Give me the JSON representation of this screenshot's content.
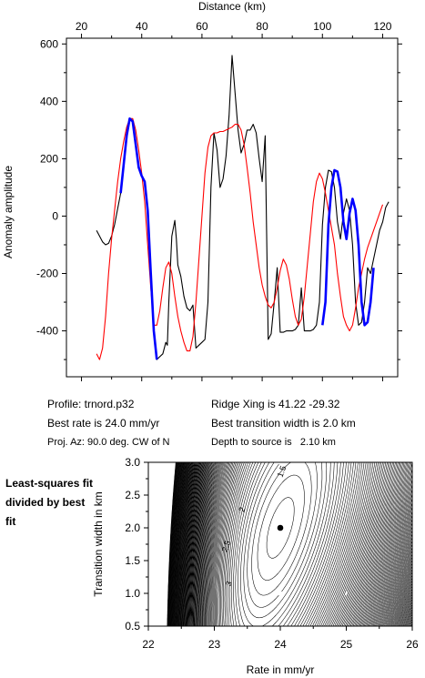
{
  "chart_data": [
    {
      "type": "line",
      "xlabel": "Distance (km)",
      "ylabel": "Anomaly amplitude",
      "xlim": [
        15,
        125
      ],
      "ylim": [
        -560,
        620
      ],
      "xticks": [
        20,
        40,
        60,
        80,
        100,
        120
      ],
      "yticks": [
        600,
        400,
        200,
        0,
        -200,
        -400
      ],
      "series": [
        {
          "color": "#000000",
          "x": [
            25,
            27,
            28,
            29,
            30,
            31,
            33,
            34,
            35,
            36,
            37,
            38,
            39,
            40,
            41,
            42,
            43,
            44,
            45,
            46,
            47,
            48,
            48.5,
            49,
            50,
            51,
            51.5,
            52,
            53,
            54,
            55,
            56,
            57,
            58,
            59,
            60,
            61,
            62,
            63,
            64,
            65,
            66,
            67,
            68,
            69,
            70,
            71,
            72,
            73,
            74,
            75,
            76,
            77,
            78,
            79,
            80,
            81,
            82,
            83,
            84,
            85,
            86,
            87,
            88,
            89,
            90,
            91,
            92,
            93,
            94,
            95,
            96,
            97,
            98,
            99,
            100,
            101,
            102,
            103,
            104,
            105,
            106,
            107,
            108,
            109,
            110,
            111,
            112,
            113,
            114,
            115,
            116,
            117,
            118,
            119,
            120,
            121,
            122
          ],
          "y": [
            -50,
            -90,
            -100,
            -95,
            -70,
            -30,
            80,
            180,
            280,
            340,
            330,
            250,
            170,
            140,
            120,
            20,
            -200,
            -400,
            -500,
            -490,
            -480,
            -440,
            -450,
            -300,
            -70,
            -15,
            -80,
            -170,
            -210,
            -280,
            -320,
            -330,
            -310,
            -460,
            -450,
            -440,
            -430,
            -300,
            100,
            290,
            230,
            100,
            130,
            210,
            350,
            560,
            430,
            300,
            220,
            250,
            300,
            300,
            320,
            290,
            200,
            120,
            280,
            -430,
            -410,
            -300,
            -180,
            -405,
            -405,
            -400,
            -400,
            -400,
            -395,
            -380,
            -250,
            -400,
            -400,
            -400,
            -395,
            -380,
            -300,
            -30,
            100,
            160,
            155,
            100,
            -20,
            -80,
            10,
            60,
            20,
            -100,
            -300,
            -380,
            -370,
            -300,
            -180,
            -200,
            -150,
            -100,
            -50,
            -20,
            30,
            50
          ]
        },
        {
          "color": "#0000ff",
          "x": [
            33,
            34,
            35,
            36,
            37,
            38,
            39,
            40,
            41,
            42,
            43,
            44,
            45
          ],
          "y": [
            80,
            180,
            280,
            340,
            330,
            250,
            170,
            140,
            120,
            20,
            -200,
            -400,
            -500
          ]
        },
        {
          "color": "#0000ff",
          "x": [
            100,
            101,
            102,
            103,
            104,
            105,
            106,
            107,
            108,
            109,
            110,
            111,
            112,
            113,
            114,
            115,
            116,
            117
          ],
          "y": [
            -380,
            -300,
            -30,
            100,
            160,
            155,
            100,
            -20,
            -80,
            10,
            60,
            20,
            -100,
            -300,
            -380,
            -370,
            -300,
            -180
          ]
        },
        {
          "color": "#ff0000",
          "x": [
            25,
            26,
            27,
            28,
            29,
            30,
            31,
            32,
            33,
            34,
            35,
            36,
            37,
            38,
            39,
            40,
            41,
            42,
            43,
            44,
            45,
            46,
            47,
            48,
            49,
            50,
            51,
            52,
            53,
            54,
            55,
            56,
            57,
            58,
            59,
            60,
            61,
            62,
            63,
            64,
            65,
            66,
            67,
            68,
            69,
            70,
            71,
            72,
            73,
            74,
            75,
            76,
            77,
            78,
            79,
            80,
            81,
            82,
            83,
            84,
            85,
            86,
            87,
            88,
            89,
            90,
            91,
            92,
            93,
            94,
            95,
            96,
            97,
            98,
            99,
            100,
            101,
            102,
            103,
            104,
            105,
            106,
            107,
            108,
            109,
            110,
            111,
            112,
            113,
            114,
            115,
            116,
            117,
            118,
            119,
            120
          ],
          "y": [
            -480,
            -500,
            -460,
            -350,
            -200,
            -80,
            20,
            120,
            200,
            260,
            310,
            340,
            340,
            300,
            230,
            150,
            50,
            -100,
            -250,
            -380,
            -380,
            -330,
            -250,
            -180,
            -160,
            -200,
            -280,
            -350,
            -400,
            -440,
            -470,
            -470,
            -420,
            -300,
            -150,
            0,
            150,
            240,
            280,
            290,
            290,
            295,
            295,
            300,
            305,
            310,
            320,
            320,
            300,
            250,
            170,
            80,
            -20,
            -100,
            -180,
            -240,
            -280,
            -310,
            -320,
            -300,
            -250,
            -190,
            -150,
            -170,
            -220,
            -290,
            -350,
            -380,
            -360,
            -280,
            -170,
            -60,
            50,
            120,
            150,
            130,
            80,
            20,
            -40,
            -100,
            -200,
            -280,
            -350,
            -380,
            -400,
            -380,
            -320,
            -250,
            -200,
            -150,
            -110,
            -80,
            -50,
            -20,
            10,
            40
          ]
        }
      ]
    },
    {
      "type": "heatmap",
      "plot_kind": "contour",
      "xlabel": "Rate in mm/yr",
      "ylabel": "Transition width in km",
      "xlim": [
        22,
        26
      ],
      "ylim": [
        0.5,
        3.0
      ],
      "xticks": [
        22,
        23,
        24,
        25,
        26
      ],
      "yticks": [
        0.5,
        1.0,
        1.5,
        2.0,
        2.5,
        3.0
      ],
      "contour_labels": [
        "1.5",
        "2",
        "2.5",
        "3"
      ],
      "best_fit_point": {
        "x": 24.0,
        "y": 2.0
      }
    }
  ],
  "info": {
    "profile": "Profile: trnord.p32",
    "ridge": "Ridge Xing is 41.22 -29.32",
    "rate": "Best rate is 24.0 mm/yr",
    "width": "Best transition width is 2.0 km",
    "azimuth": "Proj. Az: 90.0 deg. CW of N",
    "depth": "Depth to source is   2.10 km"
  },
  "note": "Least-squares fit divided by best fit"
}
